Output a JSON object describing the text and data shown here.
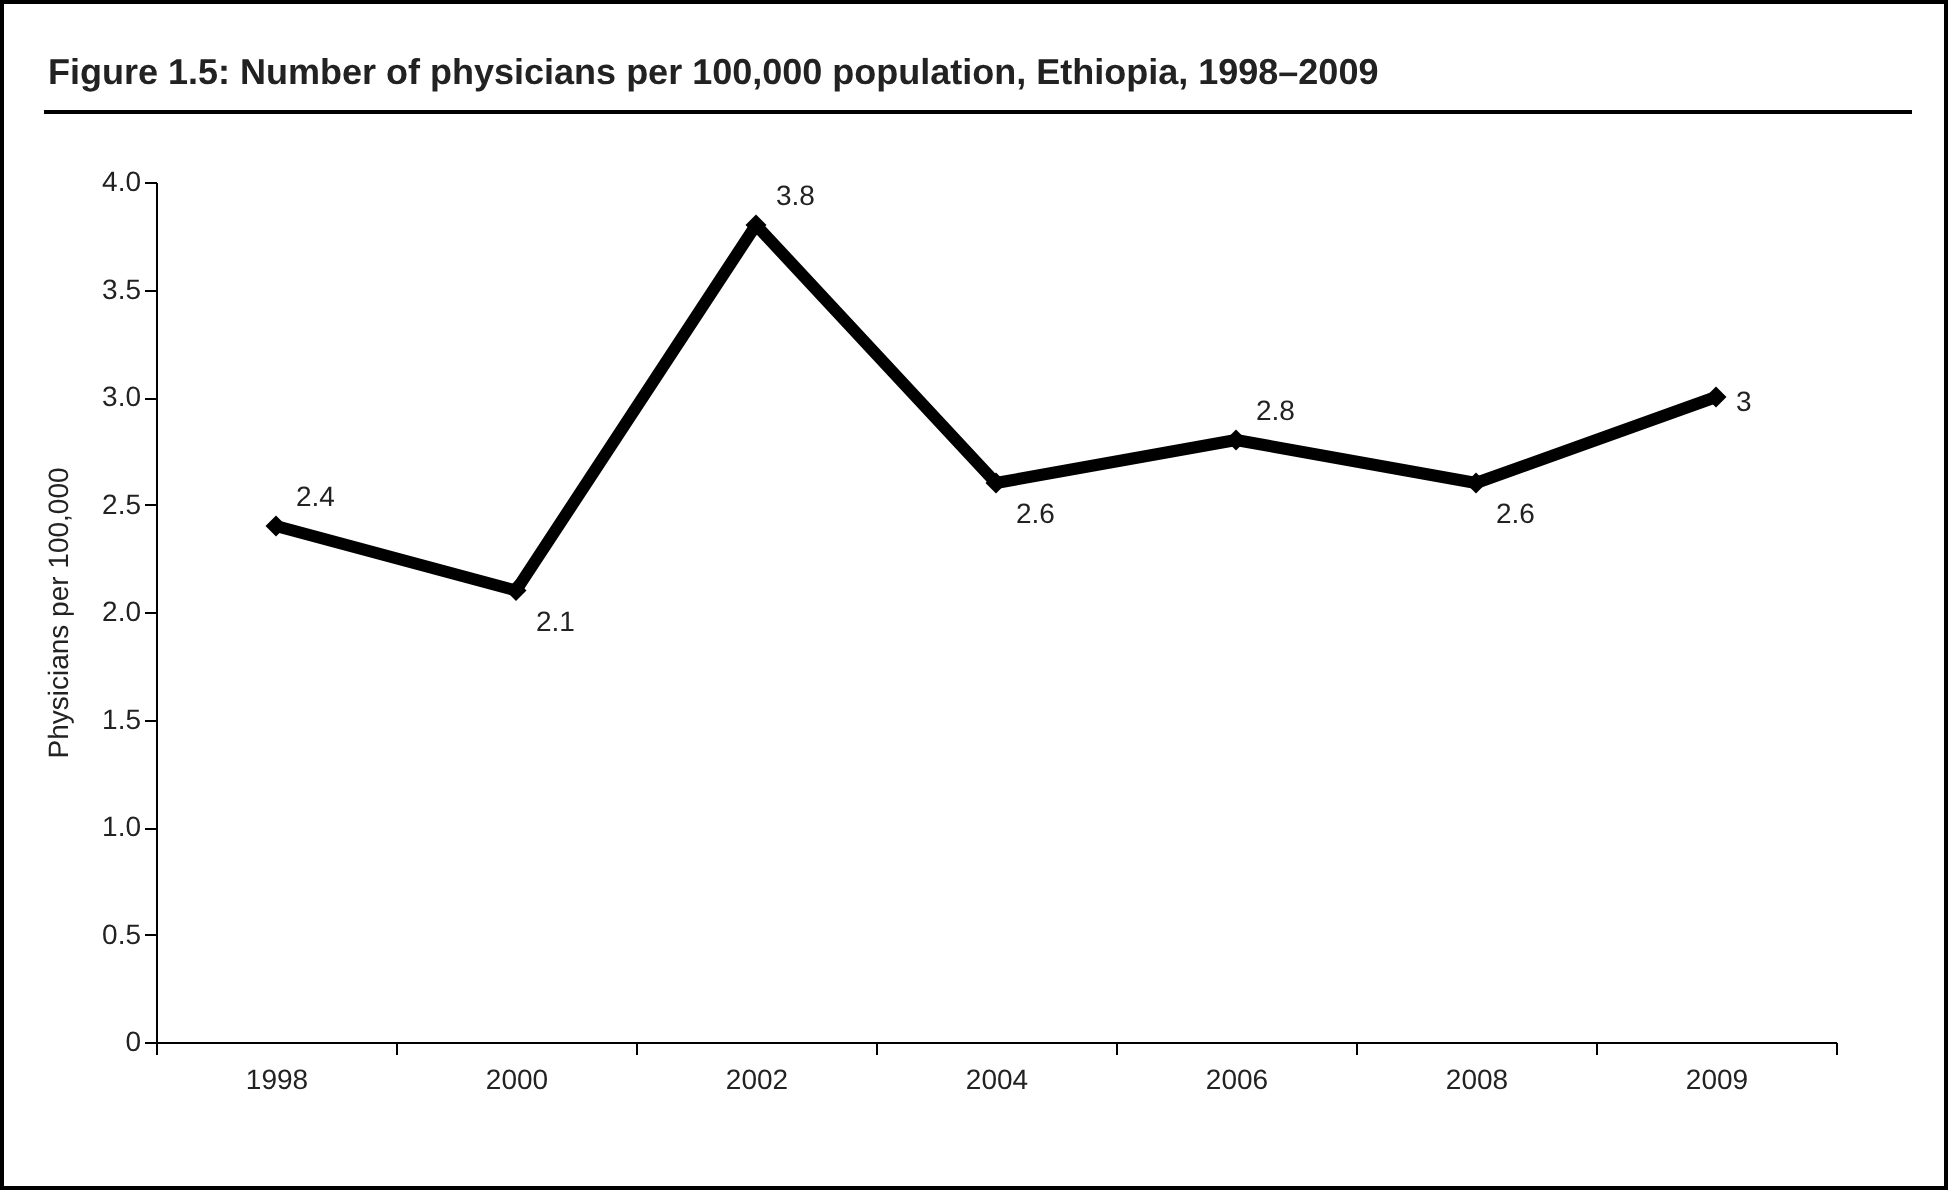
{
  "chart_data": {
    "type": "line",
    "title": "Figure 1.5: Number of physicians per 100,000 population, Ethiopia, 1998–2009",
    "ylabel": "Physicians per 100,000",
    "categories": [
      "1998",
      "2000",
      "2002",
      "2004",
      "2006",
      "2008",
      "2009"
    ],
    "series": [
      {
        "color": "#000000",
        "values": [
          2.4,
          2.1,
          3.8,
          2.6,
          2.8,
          2.6,
          3
        ]
      }
    ],
    "ylim": [
      0,
      4
    ],
    "yticks": [
      0,
      0.5,
      {
        "value": 1,
        "label": "1.0"
      },
      1.5,
      {
        "value": 2,
        "label": "2.0"
      },
      2.5,
      {
        "value": 3,
        "label": "3.0"
      },
      3.5,
      {
        "value": 4,
        "label": "4.0"
      }
    ],
    "data_labels": true,
    "marker": "diamond",
    "line_style": "solid",
    "grid": false,
    "legend": false
  }
}
